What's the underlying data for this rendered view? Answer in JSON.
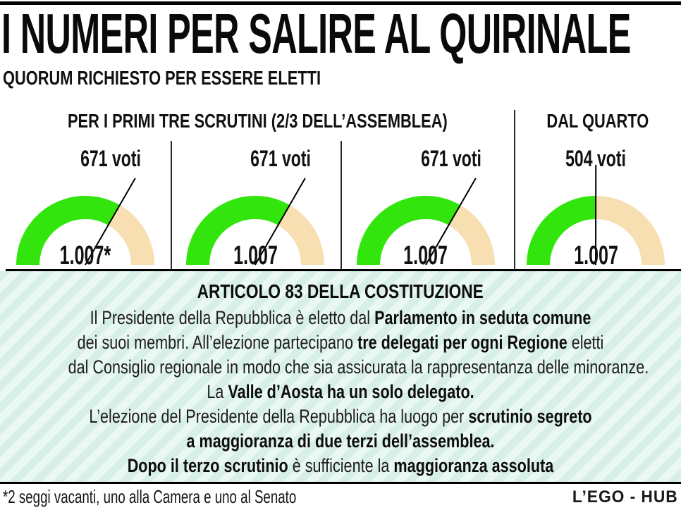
{
  "title": "I NUMERI PER SALIRE AL QUIRINALE",
  "subtitle": "QUORUM RICHIESTO PER ESSERE ELETTI",
  "sections": {
    "first_three_heading": "PER I PRIMI TRE SCRUTINI (2/3 DELL’ASSEMBLEA)",
    "from_fourth_heading": "DAL QUARTO"
  },
  "chart_data": {
    "type": "gauge",
    "description": "Four semicircular gauges: votes required vs total electors (1.007)",
    "gauges": [
      {
        "label": "671 voti",
        "value": 671,
        "total": 1007,
        "total_label": "1.007*"
      },
      {
        "label": "671 voti",
        "value": 671,
        "total": 1007,
        "total_label": "1.007"
      },
      {
        "label": "671 voti",
        "value": 671,
        "total": 1007,
        "total_label": "1.007"
      },
      {
        "label": "504 voti",
        "value": 504,
        "total": 1007,
        "total_label": "1.007"
      }
    ],
    "colors": {
      "filled": "#32e60d",
      "remainder": "#f8dfb2"
    }
  },
  "article": {
    "heading": "ARTICOLO 83 DELLA COSTITUZIONE",
    "lines": [
      [
        {
          "text": "Il Presidente della Repubblica è eletto dal ",
          "bold": false
        },
        {
          "text": "Parlamento in seduta comune",
          "bold": true
        }
      ],
      [
        {
          "text": "dei suoi membri. All’elezione partecipano ",
          "bold": false
        },
        {
          "text": "tre delegati per ogni Regione",
          "bold": true
        },
        {
          "text": " eletti",
          "bold": false
        }
      ],
      [
        {
          "text": "dal Consiglio regionale in modo che sia assicurata la rappresentanza delle minoranze.",
          "bold": false
        }
      ],
      [
        {
          "text": "La ",
          "bold": false
        },
        {
          "text": "Valle d’Aosta ha un solo delegato.",
          "bold": true
        }
      ],
      [
        {
          "text": "L’elezione del Presidente della Repubblica ha luogo per ",
          "bold": false
        },
        {
          "text": "scrutinio segreto",
          "bold": true
        }
      ],
      [
        {
          "text": "a maggioranza di due terzi dell’assemblea.",
          "bold": true
        }
      ],
      [
        {
          "text": "Dopo il terzo scrutinio",
          "bold": true
        },
        {
          "text": " è sufficiente la ",
          "bold": false
        },
        {
          "text": "maggioranza assoluta",
          "bold": true
        }
      ]
    ]
  },
  "footer": {
    "note": "*2 seggi vacanti, uno alla Camera e uno al Senato",
    "credit": "L’EGO - HUB"
  }
}
